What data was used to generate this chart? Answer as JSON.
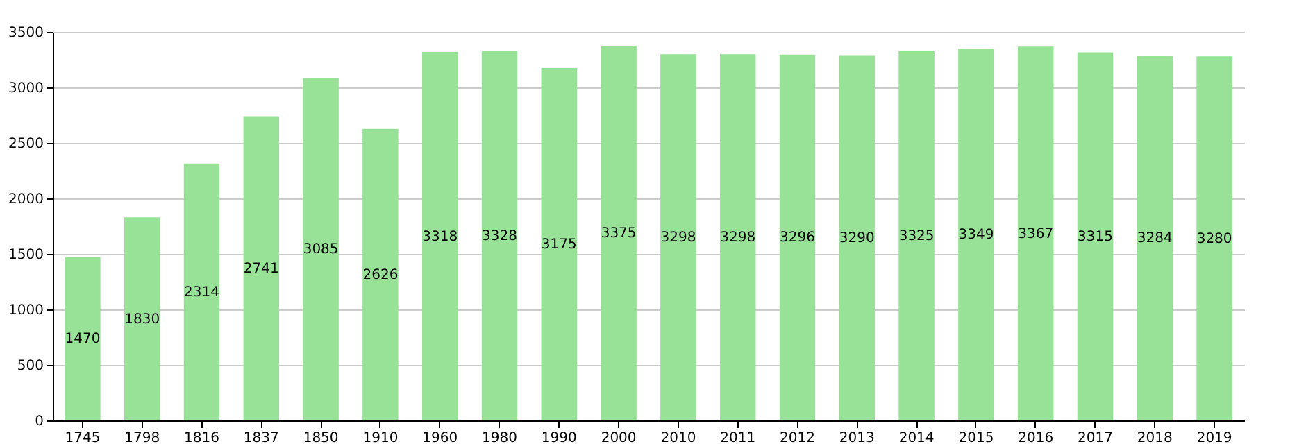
{
  "chart_data": {
    "type": "bar",
    "categories": [
      "1745",
      "1798",
      "1816",
      "1837",
      "1850",
      "1910",
      "1960",
      "1980",
      "1990",
      "2000",
      "2010",
      "2011",
      "2012",
      "2013",
      "2014",
      "2015",
      "2016",
      "2017",
      "2018",
      "2019"
    ],
    "values": [
      1470,
      1830,
      2314,
      2741,
      3085,
      2626,
      3318,
      3328,
      3175,
      3375,
      3298,
      3298,
      3296,
      3290,
      3325,
      3349,
      3367,
      3315,
      3284,
      3280
    ],
    "color": "#97e297",
    "ylim": [
      0,
      3500
    ],
    "yticks": [
      0,
      500,
      1000,
      1500,
      2000,
      2500,
      3000,
      3500
    ],
    "grid": "y",
    "data_labels": true
  }
}
